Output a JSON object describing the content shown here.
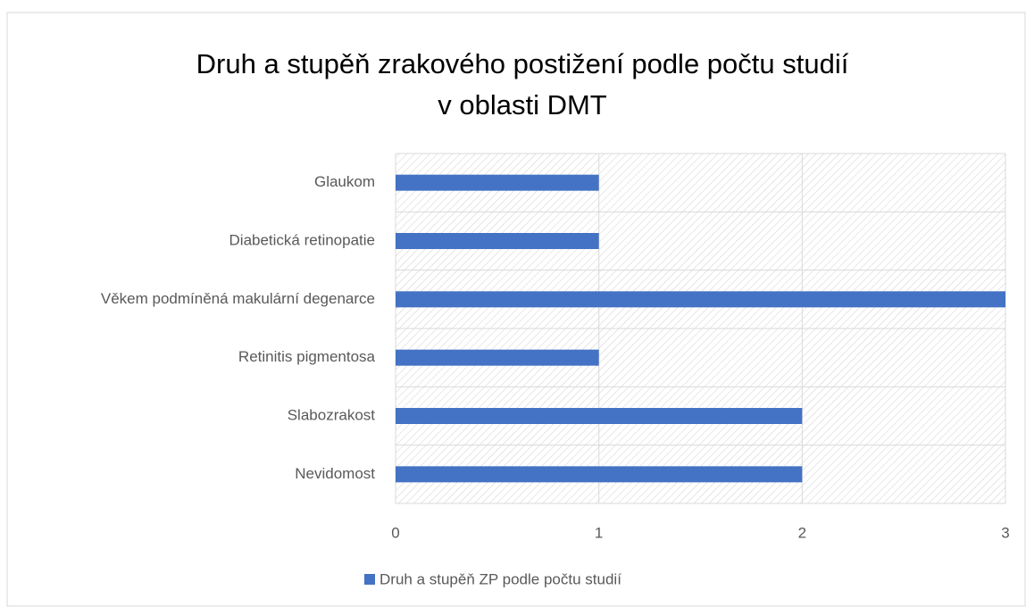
{
  "chart_data": {
    "type": "bar",
    "orientation": "horizontal",
    "title": [
      "Druh a stupěň zrakového postižení podle počtu studií",
      "v oblasti DMT"
    ],
    "categories": [
      "Glaukom",
      "Diabetická retinopatie",
      "Věkem podmíněná makulární degenarce",
      "Retinitis pigmentosa",
      "Slabozrakost",
      "Nevidomost"
    ],
    "series": [
      {
        "name": "Druh a stupěň ZP podle počtu studií",
        "color": "#4472c4",
        "values": [
          1,
          1,
          3,
          1,
          2,
          2
        ]
      }
    ],
    "xlim": [
      0,
      3
    ],
    "xticks": [
      0,
      1,
      2,
      3
    ],
    "grid": true,
    "legend": "bottom"
  }
}
